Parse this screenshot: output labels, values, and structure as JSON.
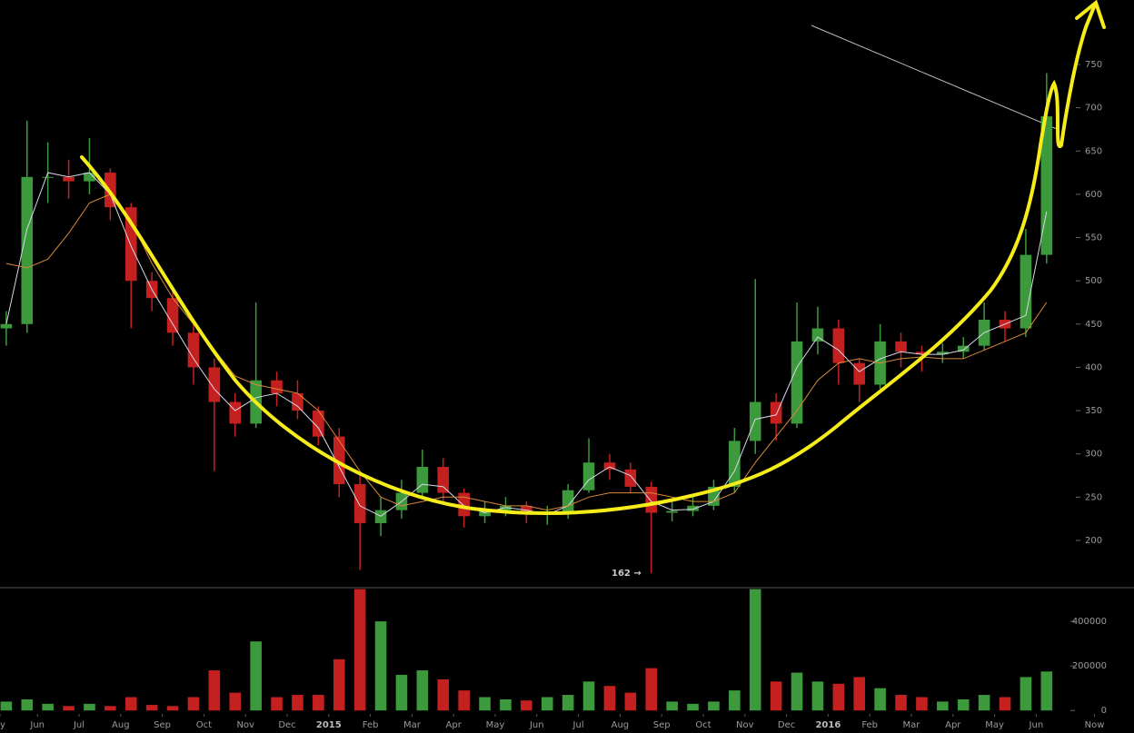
{
  "chart_data": {
    "type": "candlestick",
    "x": [
      0.25,
      0.75,
      1.25,
      1.75,
      2.25,
      2.75,
      3.25,
      3.75,
      4.25,
      4.75,
      5.25,
      5.75,
      6.25,
      6.75,
      7.25,
      7.75,
      8.25,
      8.75,
      9.25,
      9.75,
      10.25,
      10.75,
      11.25,
      11.75,
      12.25,
      12.75,
      13.25,
      13.75,
      14.25,
      14.75,
      15.25,
      15.75,
      16.25,
      16.75,
      17.25,
      17.75,
      18.25,
      18.75,
      19.25,
      19.75,
      20.25,
      20.75,
      21.25,
      21.75,
      22.25,
      22.75,
      23.25,
      23.75,
      24.25,
      24.75,
      25.25
    ],
    "open": [
      445,
      450,
      620,
      620,
      615,
      625,
      585,
      500,
      480,
      440,
      400,
      360,
      335,
      385,
      370,
      350,
      320,
      265,
      220,
      235,
      255,
      285,
      255,
      228,
      235,
      240,
      230,
      232,
      258,
      290,
      282,
      262,
      232,
      234,
      240,
      262,
      315,
      360,
      335,
      430,
      445,
      405,
      380,
      430,
      418,
      415,
      418,
      425,
      455,
      445,
      530
    ],
    "high": [
      465,
      685,
      660,
      640,
      665,
      630,
      590,
      510,
      490,
      450,
      410,
      370,
      475,
      395,
      385,
      355,
      330,
      275,
      250,
      270,
      305,
      295,
      260,
      245,
      250,
      245,
      240,
      265,
      318,
      300,
      290,
      268,
      245,
      250,
      270,
      330,
      502,
      370,
      475,
      470,
      455,
      410,
      450,
      440,
      425,
      428,
      435,
      475,
      465,
      560,
      740
    ],
    "low": [
      425,
      440,
      590,
      595,
      600,
      570,
      445,
      465,
      425,
      380,
      280,
      320,
      330,
      355,
      340,
      310,
      250,
      166,
      205,
      225,
      250,
      245,
      215,
      220,
      228,
      220,
      218,
      225,
      255,
      270,
      255,
      162,
      222,
      228,
      235,
      255,
      300,
      315,
      330,
      415,
      380,
      360,
      375,
      400,
      395,
      405,
      410,
      420,
      430,
      435,
      520
    ],
    "close": [
      450,
      620,
      620,
      615,
      625,
      585,
      500,
      480,
      440,
      400,
      360,
      335,
      385,
      370,
      350,
      320,
      265,
      220,
      235,
      255,
      285,
      255,
      228,
      235,
      240,
      230,
      232,
      258,
      290,
      282,
      262,
      232,
      234,
      240,
      262,
      315,
      360,
      335,
      430,
      445,
      405,
      380,
      430,
      418,
      415,
      418,
      425,
      455,
      445,
      530,
      690
    ],
    "up_color": "#3c9a3c",
    "down_color": "#c42020",
    "overlays": [
      {
        "color": "#d8d8e8",
        "values": [
          450,
          560,
          625,
          620,
          625,
          600,
          540,
          490,
          450,
          410,
          375,
          350,
          365,
          370,
          355,
          330,
          285,
          240,
          228,
          245,
          265,
          262,
          240,
          232,
          238,
          235,
          230,
          240,
          270,
          285,
          275,
          245,
          235,
          236,
          245,
          280,
          340,
          345,
          400,
          435,
          420,
          395,
          410,
          418,
          415,
          415,
          420,
          440,
          450,
          460,
          580
        ]
      },
      {
        "color": "#d8893a",
        "values": [
          520,
          515,
          525,
          555,
          590,
          600,
          570,
          520,
          480,
          450,
          420,
          390,
          380,
          375,
          370,
          350,
          315,
          280,
          250,
          240,
          245,
          250,
          250,
          245,
          240,
          240,
          235,
          240,
          250,
          255,
          255,
          255,
          250,
          245,
          245,
          255,
          290,
          320,
          350,
          385,
          405,
          410,
          405,
          410,
          412,
          410,
          410,
          420,
          430,
          440,
          475
        ]
      }
    ],
    "xlim": [
      0.1,
      27.35
    ],
    "xticks": [
      {
        "value": 0.1,
        "label": "y"
      },
      {
        "value": 1,
        "label": "Jun"
      },
      {
        "value": 2,
        "label": "Jul"
      },
      {
        "value": 3,
        "label": "Aug"
      },
      {
        "value": 4,
        "label": "Sep"
      },
      {
        "value": 5,
        "label": "Oct"
      },
      {
        "value": 6,
        "label": "Nov"
      },
      {
        "value": 7,
        "label": "Dec"
      },
      {
        "value": 8,
        "label": "2015"
      },
      {
        "value": 9,
        "label": "Feb"
      },
      {
        "value": 10,
        "label": "Mar"
      },
      {
        "value": 11,
        "label": "Apr"
      },
      {
        "value": 12,
        "label": "May"
      },
      {
        "value": 13,
        "label": "Jun"
      },
      {
        "value": 14,
        "label": "Jul"
      },
      {
        "value": 15,
        "label": "Aug"
      },
      {
        "value": 16,
        "label": "Sep"
      },
      {
        "value": 17,
        "label": "Oct"
      },
      {
        "value": 18,
        "label": "Nov"
      },
      {
        "value": 19,
        "label": "Dec"
      },
      {
        "value": 20,
        "label": "2016"
      },
      {
        "value": 21,
        "label": "Feb"
      },
      {
        "value": 22,
        "label": "Mar"
      },
      {
        "value": 23,
        "label": "Apr"
      },
      {
        "value": 24,
        "label": "May"
      },
      {
        "value": 25,
        "label": "Jun"
      },
      {
        "value": 26.4,
        "label": "Now"
      }
    ],
    "ylim": [
      147.5,
      824.5
    ],
    "yticks": [
      200,
      250,
      300,
      350,
      400,
      450,
      500,
      550,
      600,
      650,
      700,
      750
    ],
    "annotation": "162 →",
    "volume": {
      "values": [
        40000,
        50000,
        30000,
        20000,
        30000,
        20000,
        60000,
        25000,
        20000,
        60000,
        180000,
        80000,
        310000,
        60000,
        70000,
        70000,
        230000,
        545000,
        400000,
        160000,
        180000,
        140000,
        90000,
        60000,
        50000,
        45000,
        60000,
        70000,
        130000,
        110000,
        80000,
        190000,
        40000,
        30000,
        40000,
        90000,
        545000,
        130000,
        170000,
        130000,
        120000,
        150000,
        100000,
        70000,
        60000,
        40000,
        50000,
        70000,
        60000,
        150000,
        175000
      ],
      "ylim": [
        -101000,
        539000
      ],
      "yticks": [
        0,
        200000,
        400000
      ]
    }
  }
}
